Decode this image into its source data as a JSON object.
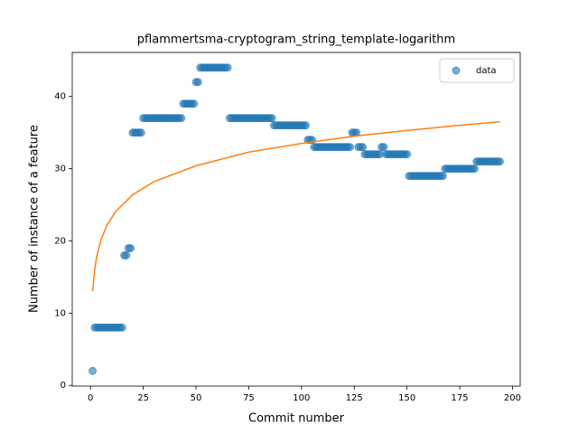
{
  "chart_data": {
    "type": "scatter",
    "title": "pflammertsma-cryptogram_string_template-logarithm",
    "x_label": "Commit number",
    "y_label": "Number of instance of a feature",
    "xlim": [
      -8.65,
      203.65
    ],
    "ylim": [
      -0.1,
      46.1
    ],
    "xticks": [
      0,
      25,
      50,
      75,
      100,
      125,
      150,
      175,
      200
    ],
    "yticks": [
      0,
      10,
      20,
      30,
      40
    ],
    "legend": "upper right",
    "series": [
      {
        "name": "data",
        "color": "#1f77b4",
        "style": "marker",
        "x": [
          1,
          2,
          3,
          4,
          5,
          6,
          7,
          8,
          9,
          10,
          11,
          12,
          13,
          14,
          15,
          16,
          17,
          18,
          19,
          20,
          21,
          22,
          23,
          24,
          25,
          26,
          27,
          28,
          29,
          30,
          31,
          32,
          33,
          34,
          35,
          36,
          37,
          38,
          39,
          40,
          41,
          42,
          43,
          44,
          45,
          46,
          47,
          48,
          49,
          50,
          51,
          52,
          53,
          54,
          55,
          56,
          57,
          58,
          59,
          60,
          61,
          62,
          63,
          64,
          65,
          66,
          67,
          68,
          69,
          70,
          71,
          72,
          73,
          74,
          75,
          76,
          77,
          78,
          79,
          80,
          81,
          82,
          83,
          84,
          85,
          86,
          87,
          88,
          89,
          90,
          91,
          92,
          93,
          94,
          95,
          96,
          97,
          98,
          99,
          100,
          101,
          102,
          103,
          104,
          105,
          106,
          107,
          108,
          109,
          110,
          111,
          112,
          113,
          114,
          115,
          116,
          117,
          118,
          119,
          120,
          121,
          122,
          123,
          124,
          125,
          126,
          127,
          128,
          129,
          130,
          131,
          132,
          133,
          134,
          135,
          136,
          137,
          138,
          139,
          140,
          141,
          142,
          143,
          144,
          145,
          146,
          147,
          148,
          149,
          150,
          151,
          152,
          153,
          154,
          155,
          156,
          157,
          158,
          159,
          160,
          161,
          162,
          163,
          164,
          165,
          166,
          167,
          168,
          169,
          170,
          171,
          172,
          173,
          174,
          175,
          176,
          177,
          178,
          179,
          180,
          181,
          182,
          183,
          184,
          185,
          186,
          187,
          188,
          189,
          190,
          191,
          192,
          193,
          194
        ],
        "values": [
          2,
          8,
          8,
          8,
          8,
          8,
          8,
          8,
          8,
          8,
          8,
          8,
          8,
          8,
          8,
          18,
          18,
          19,
          19,
          35,
          35,
          35,
          35,
          35,
          37,
          37,
          37,
          37,
          37,
          37,
          37,
          37,
          37,
          37,
          37,
          37,
          37,
          37,
          37,
          37,
          37,
          37,
          37,
          39,
          39,
          39,
          39,
          39,
          39,
          42,
          42,
          44,
          44,
          44,
          44,
          44,
          44,
          44,
          44,
          44,
          44,
          44,
          44,
          44,
          44,
          37,
          37,
          37,
          37,
          37,
          37,
          37,
          37,
          37,
          37,
          37,
          37,
          37,
          37,
          37,
          37,
          37,
          37,
          37,
          37,
          37,
          36,
          36,
          36,
          36,
          36,
          36,
          36,
          36,
          36,
          36,
          36,
          36,
          36,
          36,
          36,
          36,
          34,
          34,
          34,
          33,
          33,
          33,
          33,
          33,
          33,
          33,
          33,
          33,
          33,
          33,
          33,
          33,
          33,
          33,
          33,
          33,
          33,
          35,
          35,
          35,
          33,
          33,
          33,
          32,
          32,
          32,
          32,
          32,
          32,
          32,
          32,
          33,
          33,
          32,
          32,
          32,
          32,
          32,
          32,
          32,
          32,
          32,
          32,
          32,
          29,
          29,
          29,
          29,
          29,
          29,
          29,
          29,
          29,
          29,
          29,
          29,
          29,
          29,
          29,
          29,
          29,
          30,
          30,
          30,
          30,
          30,
          30,
          30,
          30,
          30,
          30,
          30,
          30,
          30,
          30,
          30,
          31,
          31,
          31,
          31,
          31,
          31,
          31,
          31,
          31,
          31,
          31,
          31
        ]
      },
      {
        "color": "#ff7f0e",
        "style": "line",
        "x": [
          1,
          2,
          3,
          5,
          8,
          12,
          20,
          30,
          50,
          75,
          100,
          125,
          150,
          175,
          194
        ],
        "values": [
          13,
          16.1,
          17.9,
          20.2,
          22.3,
          24.1,
          26.4,
          28.2,
          30.4,
          32.3,
          33.5,
          34.5,
          35.3,
          36.0,
          36.5
        ]
      }
    ]
  }
}
